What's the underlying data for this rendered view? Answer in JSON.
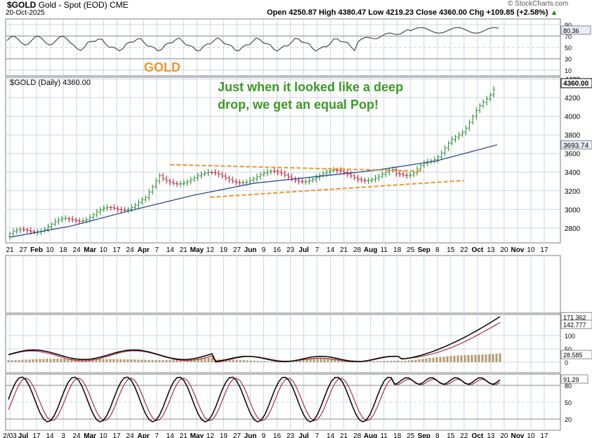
{
  "header": {
    "symbol": "$GOLD",
    "name": "Gold - Spot (EOD)",
    "exchange": "CME",
    "watermark": "© StockCharts.com",
    "date": "20-Oct-2025",
    "ohlc": "Open 4250.87  High 4380.47  Low 4219.23  Close 4360.00  Chg +109.85 (+2.58%)",
    "ohlc_arrow": "▲"
  },
  "colors": {
    "grid": "#c9d7e8",
    "panel_border": "#7f7f7f",
    "up": "#1f8a1f",
    "down": "#c8102e",
    "ma": "#1c3d8f",
    "trend": "#f0962a",
    "rsi": "#4d4d4d",
    "macd": "#000000",
    "signal": "#b0303e",
    "hist": "#b49a6a",
    "stoch_k": "#000000",
    "stoch_d": "#b0303e",
    "label_bg": "#e9eef6"
  },
  "chart_data": {
    "type": "candlestick",
    "title": "GOLD",
    "annotation": "Just when it looked like a deep drop, we get an equal Pop!",
    "legend": "$GOLD (Daily) 4360.00",
    "x_labels": [
      "21",
      "27",
      "Feb",
      "10",
      "18",
      "24",
      "Mar",
      "10",
      "17",
      "24",
      "Apr",
      "7",
      "14",
      "21",
      "May",
      "12",
      "19",
      "27",
      "Jun",
      "9",
      "16",
      "23",
      "Jul",
      "7",
      "14",
      "21",
      "28",
      "Aug",
      "11",
      "18",
      "25",
      "Sep",
      "8",
      "15",
      "22",
      "Oct",
      "13",
      "20",
      "Nov",
      "10",
      "17"
    ],
    "bottom_x_labels": [
      "2/03",
      "Jul",
      "17",
      "14",
      "3",
      "24",
      "Mar",
      "10",
      "17",
      "24",
      "Apr",
      "7",
      "14",
      "21",
      "May",
      "12",
      "19",
      "27",
      "Jun",
      "9",
      "16",
      "23",
      "Jul",
      "7",
      "14",
      "21",
      "28",
      "Aug",
      "11",
      "18",
      "25",
      "Sep",
      "8",
      "15",
      "22",
      "Oct",
      "13",
      "20",
      "Nov",
      "10",
      "17"
    ],
    "price": {
      "yticks": [
        2800,
        3000,
        3200,
        3400,
        3600,
        3800,
        4000,
        4200,
        4400
      ],
      "ytick_labels": [
        "2800",
        "3000",
        "3200",
        "3400",
        "3600",
        "3800",
        "4000",
        "4200",
        "4400"
      ],
      "ylim": [
        2640,
        4420
      ],
      "last_close": 4360.0,
      "last_close_label": "4360.00",
      "ma_label": "3693.74",
      "ohlc_source": "generated-shape",
      "ma_values": [
        2700,
        2820,
        2990,
        3150,
        3280,
        3350,
        3420,
        3520,
        3693.74
      ],
      "trendline_upper": [
        [
          12,
          3480
        ],
        [
          31,
          3410
        ]
      ],
      "trendline_lower": [
        [
          15,
          3130
        ],
        [
          34,
          3310
        ]
      ]
    },
    "rsi": {
      "label": "80.36",
      "yticks": [
        10,
        30,
        50,
        70,
        90
      ],
      "ytick_labels": [
        "10",
        "30",
        "50",
        "70",
        "90"
      ],
      "ylim": [
        0,
        100
      ]
    },
    "macd": {
      "labels": [
        "171.362",
        "142.777",
        "28.585"
      ],
      "yticks": [
        0,
        50,
        100
      ],
      "ytick_labels": [
        "0",
        "50",
        "100"
      ],
      "ylim": [
        -40,
        180
      ]
    },
    "stochastic": {
      "label": "91.29",
      "yticks": [
        20,
        50,
        80
      ],
      "ytick_labels": [
        "20",
        "50",
        "80"
      ],
      "ylim": [
        0,
        100
      ]
    }
  }
}
